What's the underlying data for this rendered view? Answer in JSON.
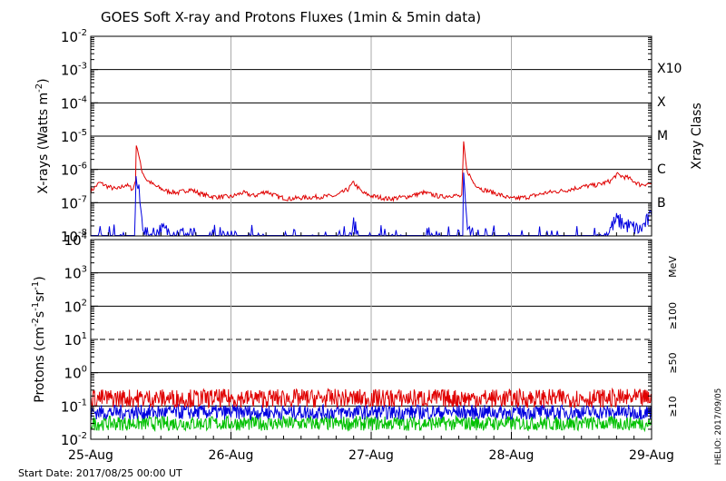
{
  "chart_data": [
    {
      "type": "line",
      "title": "GOES Soft X-ray and Protons Fluxes   (1min & 5min data)",
      "ylabel": "X-rays (Watts m-2)",
      "ylabel_parts": {
        "main": "X-rays (Watts m",
        "sup": "-2",
        "end": ")"
      },
      "yscale": "log",
      "ylim": [
        "1e-8",
        "1e-2"
      ],
      "ytick_labels": [
        {
          "base": "10",
          "exp": "-2"
        },
        {
          "base": "10",
          "exp": "-3"
        },
        {
          "base": "10",
          "exp": "-4"
        },
        {
          "base": "10",
          "exp": "-5"
        },
        {
          "base": "10",
          "exp": "-6"
        },
        {
          "base": "10",
          "exp": "-7"
        },
        {
          "base": "10",
          "exp": "-8"
        }
      ],
      "right_axis_label": "Xray Class",
      "class_labels": [
        "X10",
        "X",
        "M",
        "C",
        "B"
      ],
      "grid": true,
      "x": [
        "2017-08-25",
        "2017-08-26",
        "2017-08-27",
        "2017-08-28",
        "2017-08-29"
      ],
      "series": [
        {
          "color": "#e00000",
          "points": [
            [
              "2017-08-25 00:00",
              2.2e-07
            ],
            [
              "2017-08-25 01:30",
              4e-07
            ],
            [
              "2017-08-25 03:00",
              3e-07
            ],
            [
              "2017-08-25 04:30",
              2.5e-07
            ],
            [
              "2017-08-25 06:00",
              3.5e-07
            ],
            [
              "2017-08-25 07:15",
              2.5e-07
            ],
            [
              "2017-08-25 07:40",
              5e-07
            ],
            [
              "2017-08-25 07:48",
              6e-06
            ],
            [
              "2017-08-25 08:10",
              3e-06
            ],
            [
              "2017-08-25 08:40",
              1e-06
            ],
            [
              "2017-08-25 09:30",
              5e-07
            ],
            [
              "2017-08-25 11:00",
              3.2e-07
            ],
            [
              "2017-08-25 13:00",
              2.2e-07
            ],
            [
              "2017-08-25 15:00",
              2e-07
            ],
            [
              "2017-08-25 17:00",
              2.5e-07
            ],
            [
              "2017-08-25 19:00",
              1.8e-07
            ],
            [
              "2017-08-25 21:00",
              1.5e-07
            ],
            [
              "2017-08-26 00:00",
              1.5e-07
            ],
            [
              "2017-08-26 02:00",
              2e-07
            ],
            [
              "2017-08-26 04:00",
              1.6e-07
            ],
            [
              "2017-08-26 06:00",
              2.2e-07
            ],
            [
              "2017-08-26 08:00",
              1.5e-07
            ],
            [
              "2017-08-26 10:00",
              1.3e-07
            ],
            [
              "2017-08-26 12:00",
              1.4e-07
            ],
            [
              "2017-08-26 15:00",
              1.5e-07
            ],
            [
              "2017-08-26 18:00",
              1.6e-07
            ],
            [
              "2017-08-26 20:00",
              2.5e-07
            ],
            [
              "2017-08-26 21:00",
              4e-07
            ],
            [
              "2017-08-26 22:30",
              2e-07
            ],
            [
              "2017-08-27 00:00",
              1.6e-07
            ],
            [
              "2017-08-27 03:00",
              1.3e-07
            ],
            [
              "2017-08-27 06:00",
              1.5e-07
            ],
            [
              "2017-08-27 09:00",
              2e-07
            ],
            [
              "2017-08-27 12:00",
              1.5e-07
            ],
            [
              "2017-08-27 14:00",
              1.7e-07
            ],
            [
              "2017-08-27 15:30",
              1.5e-07
            ],
            [
              "2017-08-27 15:50",
              6e-06
            ],
            [
              "2017-08-27 16:20",
              1e-06
            ],
            [
              "2017-08-27 17:30",
              4e-07
            ],
            [
              "2017-08-27 19:00",
              2.5e-07
            ],
            [
              "2017-08-27 21:00",
              2e-07
            ],
            [
              "2017-08-28 00:00",
              1.3e-07
            ],
            [
              "2017-08-28 03:00",
              1.5e-07
            ],
            [
              "2017-08-28 06:00",
              2e-07
            ],
            [
              "2017-08-28 09:00",
              2.3e-07
            ],
            [
              "2017-08-28 12:00",
              3e-07
            ],
            [
              "2017-08-28 15:00",
              3.5e-07
            ],
            [
              "2017-08-28 17:00",
              4.5e-07
            ],
            [
              "2017-08-28 18:00",
              7e-07
            ],
            [
              "2017-08-28 20:00",
              5.5e-07
            ],
            [
              "2017-08-28 22:00",
              3.5e-07
            ],
            [
              "2017-08-29 00:00",
              3.8e-07
            ]
          ]
        },
        {
          "color": "#0000e0",
          "points": [
            [
              "2017-08-25 00:00",
              1e-08
            ],
            [
              "2017-08-25 07:30",
              1e-08
            ],
            [
              "2017-08-25 07:45",
              5e-07
            ],
            [
              "2017-08-25 08:15",
              2e-07
            ],
            [
              "2017-08-25 08:45",
              3e-08
            ],
            [
              "2017-08-25 09:30",
              1e-08
            ],
            [
              "2017-08-25 12:00",
              1.5e-08
            ],
            [
              "2017-08-25 18:00",
              1e-08
            ],
            [
              "2017-08-26 20:30",
              1e-08
            ],
            [
              "2017-08-26 21:00",
              2.2e-08
            ],
            [
              "2017-08-26 22:00",
              1e-08
            ],
            [
              "2017-08-27 15:40",
              1e-08
            ],
            [
              "2017-08-27 15:50",
              5e-07
            ],
            [
              "2017-08-27 16:30",
              1.5e-08
            ],
            [
              "2017-08-27 17:30",
              1e-08
            ],
            [
              "2017-08-28 16:00",
              1e-08
            ],
            [
              "2017-08-28 18:00",
              3e-08
            ],
            [
              "2017-08-28 20:00",
              2e-08
            ],
            [
              "2017-08-28 22:00",
              1.5e-08
            ],
            [
              "2017-08-29 00:00",
              4e-08
            ]
          ]
        }
      ]
    },
    {
      "type": "line",
      "ylabel": "Protons (cm-2s-1sr-1)",
      "ylabel_parts": {
        "main": "Protons (cm",
        "sup1": "-2",
        "mid": "s",
        "sup2": "-1",
        "mid2": "sr",
        "sup3": "-1",
        "end": ")"
      },
      "yscale": "log",
      "ylim": [
        "1e-2",
        "1e4"
      ],
      "ytick_labels": [
        {
          "base": "10",
          "exp": "4"
        },
        {
          "base": "10",
          "exp": "3"
        },
        {
          "base": "10",
          "exp": "2"
        },
        {
          "base": "10",
          "exp": "1"
        },
        {
          "base": "10",
          "exp": "0"
        },
        {
          "base": "10",
          "exp": "-1"
        },
        {
          "base": "10",
          "exp": "-2"
        }
      ],
      "threshold": {
        "value": 10,
        "style": "dashed"
      },
      "grid": true,
      "unit_label": "MeV",
      "series": [
        {
          "name": "≥100",
          "color": "#00c000",
          "level": 0.03
        },
        {
          "name": "≥50",
          "color": "#0000e0",
          "level": 0.065
        },
        {
          "name": "≥10",
          "color": "#e00000",
          "level": 0.17
        }
      ]
    }
  ],
  "x_tick_labels": [
    "25-Aug",
    "26-Aug",
    "27-Aug",
    "28-Aug",
    "29-Aug"
  ],
  "start_date": "Start Date: 2017/08/25 00:00 UT",
  "credit": "HELIO: 2017/09/05",
  "colors": {
    "red": "#e00000",
    "blue": "#0000e0",
    "green": "#00c000",
    "grid_day": "#aaaaaa"
  }
}
